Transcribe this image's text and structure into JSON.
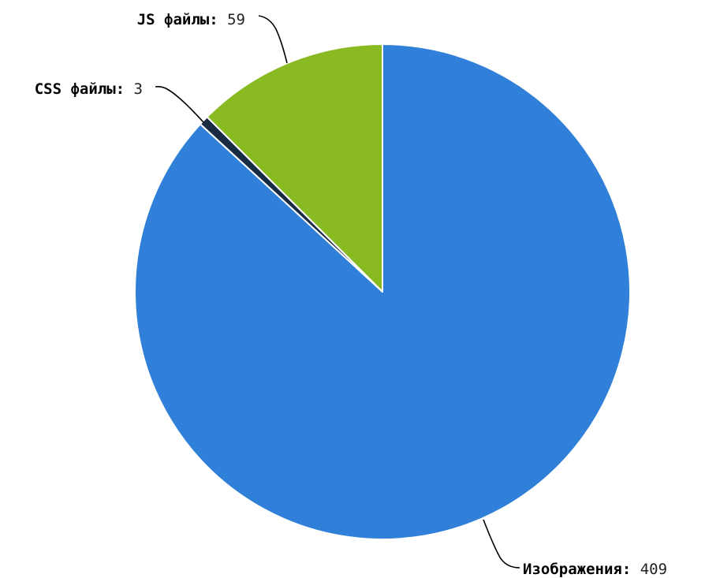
{
  "chart_data": {
    "type": "pie",
    "title": "",
    "slices": [
      {
        "label": "Изображения",
        "value": 409,
        "color": "#3080d9"
      },
      {
        "label": "CSS файлы",
        "value": 3,
        "color": "#1a2b44"
      },
      {
        "label": "JS файлы",
        "value": 59,
        "color": "#8aba22"
      }
    ],
    "separator": ":",
    "start_angle": "12 o'clock",
    "direction": "clockwise",
    "slice_border_color": "#ffffff"
  }
}
